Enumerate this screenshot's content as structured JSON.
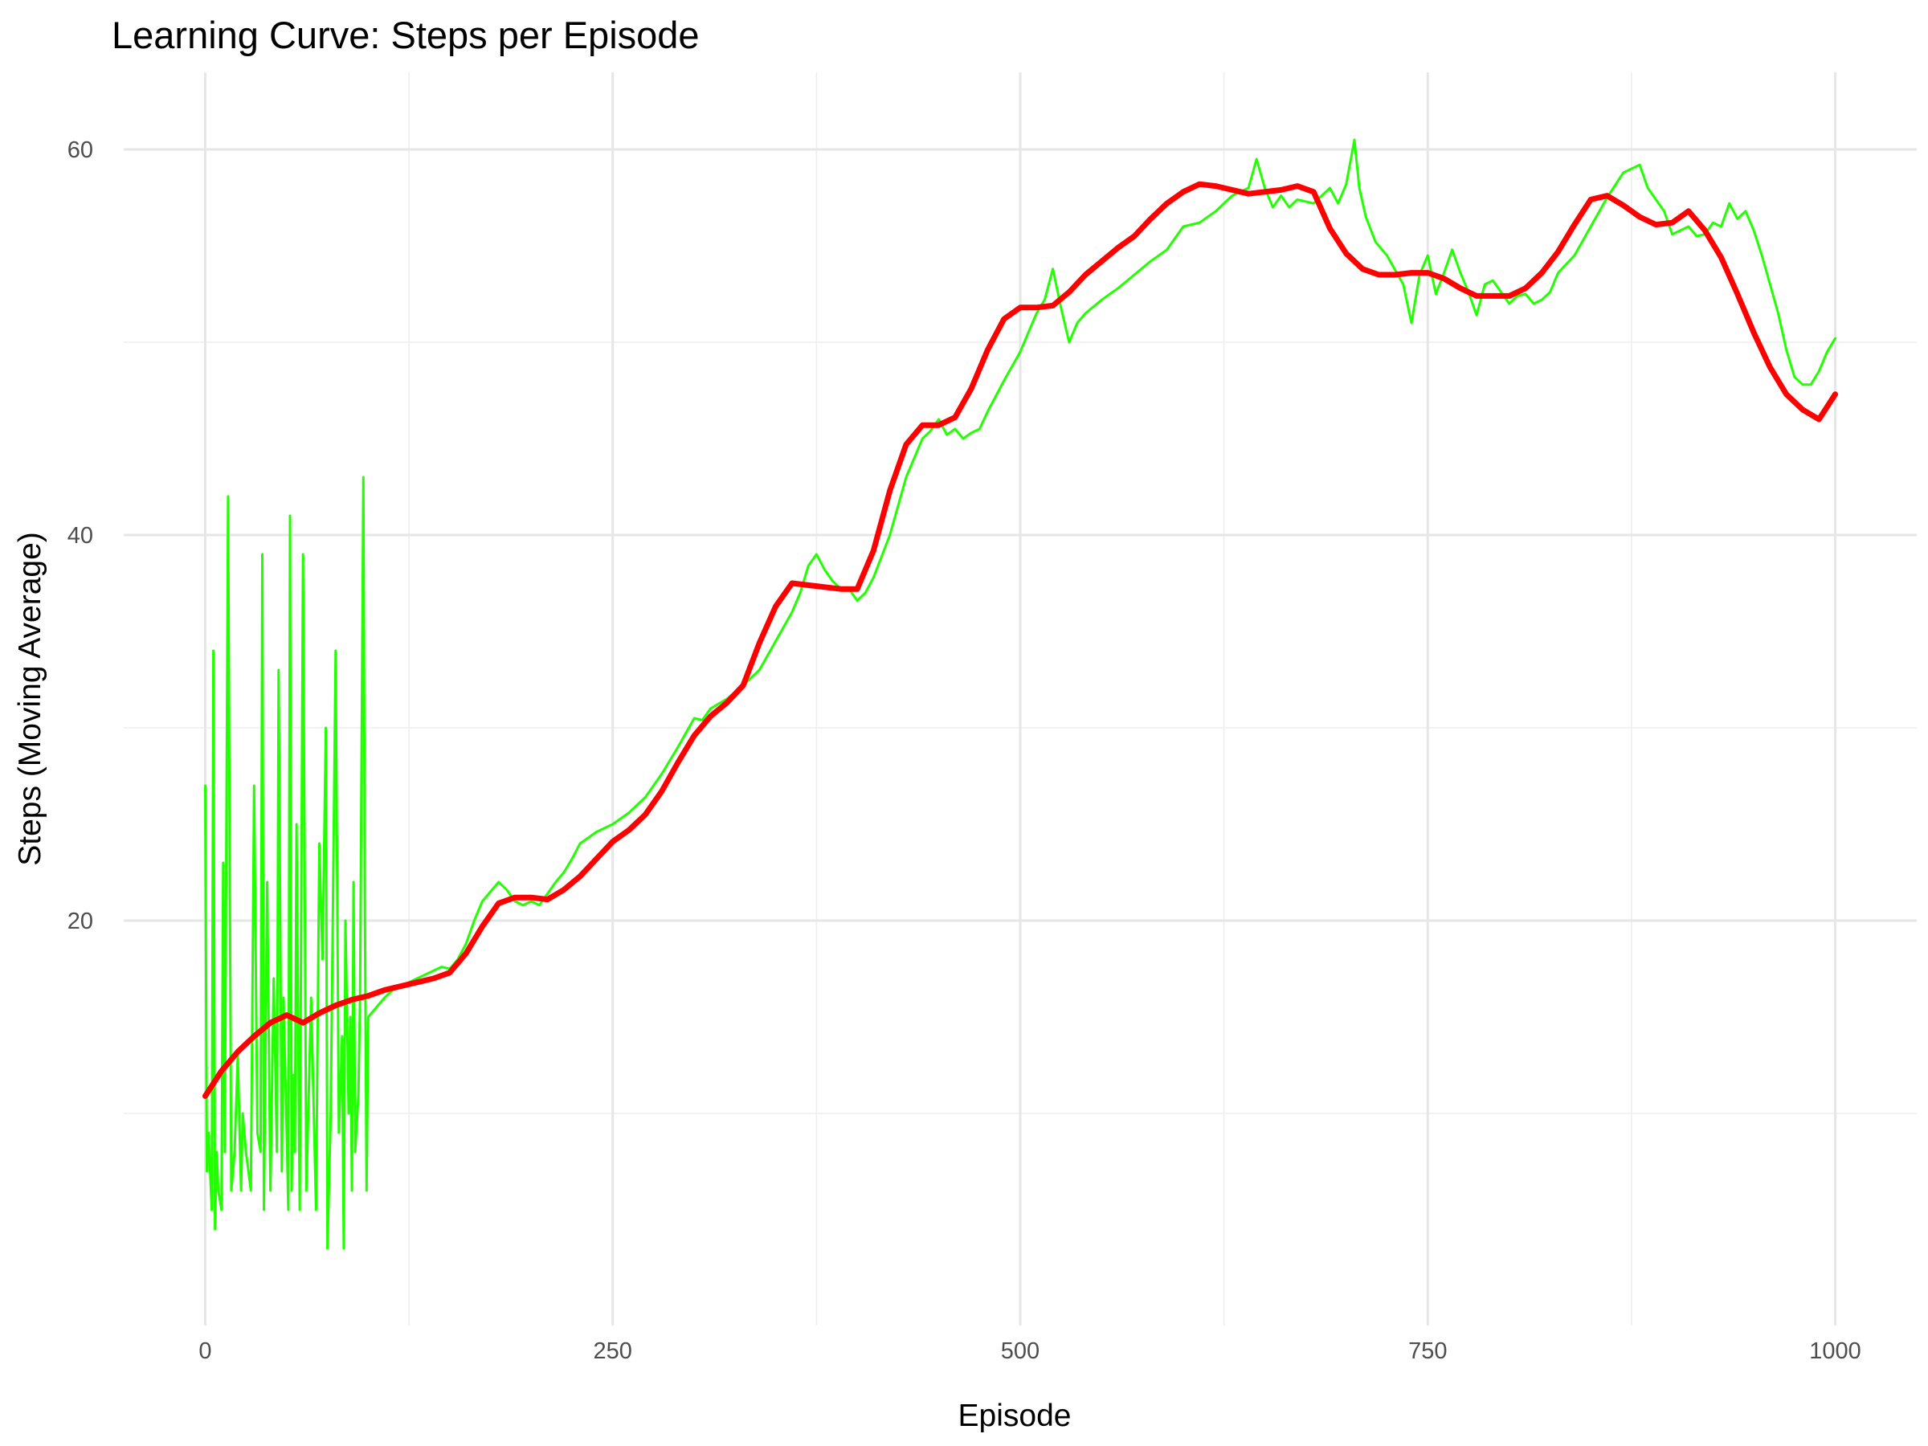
{
  "chart_data": {
    "type": "line",
    "title": "Learning Curve: Steps per Episode",
    "xlabel": "Episode",
    "ylabel": "Steps (Moving Average)",
    "xlim": [
      -50,
      1050
    ],
    "ylim": [
      -1,
      64
    ],
    "x_ticks": [
      0,
      250,
      500,
      750,
      1000
    ],
    "x_tick_labels": [
      "0",
      "250",
      "500",
      "750",
      "1000"
    ],
    "y_ticks": [
      20,
      40,
      60
    ],
    "y_tick_labels": [
      "20",
      "40",
      "60"
    ],
    "grid": true,
    "legend": "none",
    "colors": {
      "raw": "#22ff00",
      "smoothed": "#ff0000",
      "grid": "#e6e6e6"
    },
    "series": [
      {
        "key": "raw",
        "x": [
          0,
          1,
          2,
          4,
          5,
          6,
          7,
          8,
          10,
          11,
          12,
          14,
          16,
          18,
          20,
          22,
          23,
          25,
          28,
          30,
          32,
          34,
          35,
          36,
          38,
          40,
          42,
          44,
          45,
          47,
          48,
          50,
          51,
          52,
          53,
          54,
          55,
          56,
          58,
          60,
          62,
          65,
          68,
          70,
          72,
          74,
          75,
          77,
          80,
          82,
          84,
          85,
          86,
          88,
          89,
          90,
          91,
          92,
          94,
          95,
          97,
          98,
          99,
          100,
          105,
          110,
          115,
          120,
          125,
          130,
          135,
          140,
          145,
          150,
          155,
          160,
          165,
          170,
          175,
          180,
          185,
          190,
          195,
          200,
          205,
          210,
          215,
          220,
          225,
          230,
          240,
          250,
          260,
          270,
          280,
          290,
          300,
          305,
          310,
          320,
          330,
          340,
          350,
          360,
          365,
          370,
          375,
          380,
          385,
          390,
          395,
          400,
          405,
          410,
          420,
          430,
          440,
          445,
          450,
          455,
          460,
          465,
          470,
          475,
          480,
          490,
          500,
          505,
          510,
          515,
          520,
          525,
          530,
          535,
          540,
          550,
          560,
          570,
          580,
          590,
          600,
          610,
          620,
          630,
          640,
          645,
          650,
          655,
          660,
          665,
          670,
          680,
          690,
          695,
          700,
          705,
          708,
          712,
          718,
          725,
          735,
          740,
          745,
          750,
          755,
          760,
          765,
          770,
          775,
          780,
          785,
          790,
          795,
          800,
          805,
          810,
          815,
          820,
          825,
          830,
          840,
          850,
          860,
          870,
          880,
          885,
          890,
          895,
          900,
          905,
          910,
          915,
          920,
          925,
          930,
          935,
          940,
          945,
          950,
          955,
          960,
          965,
          970,
          975,
          980,
          985,
          990,
          995,
          1000
        ],
        "values": [
          27,
          7,
          9,
          5,
          34,
          4,
          8,
          6,
          5,
          23,
          8,
          42,
          6,
          8,
          13,
          6,
          10,
          8,
          6,
          27,
          9,
          8,
          39,
          5,
          22,
          6,
          17,
          8,
          33,
          7,
          16,
          9,
          5,
          41,
          6,
          12,
          8,
          25,
          5,
          39,
          6,
          16,
          5,
          24,
          18,
          30,
          3,
          10,
          34,
          9,
          14,
          3,
          20,
          10,
          15,
          6,
          22,
          8,
          11,
          16,
          43,
          20,
          6,
          15,
          15.5,
          16,
          16.4,
          16.6,
          16.8,
          17,
          17.2,
          17.4,
          17.6,
          17.5,
          18,
          18.8,
          20,
          21,
          21.5,
          22,
          21.6,
          21,
          20.8,
          21,
          20.8,
          21.4,
          22,
          22.5,
          23.2,
          24,
          24.6,
          25,
          25.6,
          26.4,
          27.6,
          29,
          30.5,
          30.4,
          31,
          31.5,
          32.2,
          33,
          34.5,
          36,
          37,
          38.4,
          39,
          38.2,
          37.6,
          37.2,
          37.2,
          36.6,
          37,
          37.8,
          40,
          43,
          45,
          45.4,
          46,
          45.2,
          45.5,
          45,
          45.3,
          45.5,
          46.4,
          48,
          49.5,
          50.5,
          51.5,
          52.2,
          53.8,
          51.8,
          50,
          51,
          51.5,
          52.2,
          52.8,
          53.5,
          54.2,
          54.8,
          56,
          56.2,
          56.8,
          57.6,
          58,
          59.5,
          58,
          57,
          57.6,
          57,
          57.4,
          57.2,
          58,
          57.2,
          58.2,
          60.5,
          58,
          56.5,
          55.2,
          54.5,
          53,
          51,
          53.5,
          54.5,
          52.5,
          53.6,
          54.8,
          53.6,
          52.6,
          51.4,
          53,
          53.2,
          52.6,
          52,
          52.4,
          52.5,
          52,
          52.2,
          52.6,
          53.6,
          54.5,
          56,
          57.5,
          58.8,
          59.2,
          58,
          57.4,
          56.8,
          55.6,
          55.8,
          56,
          55.5,
          55.6,
          56.2,
          56,
          57.2,
          56.4,
          56.8,
          55.8,
          54.5,
          53,
          51.5,
          49.6,
          48.2,
          47.8,
          47.8,
          48.5,
          49.5,
          50.2
        ]
      },
      {
        "key": "smoothed",
        "x": [
          0,
          10,
          20,
          30,
          40,
          50,
          60,
          70,
          80,
          90,
          100,
          110,
          120,
          130,
          140,
          150,
          160,
          170,
          180,
          190,
          200,
          210,
          220,
          230,
          240,
          250,
          260,
          270,
          280,
          290,
          300,
          310,
          320,
          330,
          340,
          350,
          360,
          370,
          380,
          390,
          400,
          410,
          420,
          430,
          440,
          450,
          460,
          470,
          480,
          490,
          500,
          510,
          520,
          530,
          540,
          550,
          560,
          570,
          580,
          590,
          600,
          610,
          620,
          630,
          640,
          650,
          660,
          670,
          680,
          690,
          700,
          710,
          720,
          730,
          740,
          750,
          760,
          770,
          780,
          790,
          800,
          810,
          820,
          830,
          840,
          850,
          860,
          870,
          880,
          890,
          900,
          910,
          920,
          930,
          940,
          950,
          960,
          970,
          980,
          990,
          1000
        ],
        "values": [
          10.9,
          12.2,
          13.2,
          14,
          14.7,
          15.1,
          14.7,
          15.2,
          15.6,
          15.9,
          16.1,
          16.4,
          16.6,
          16.8,
          17,
          17.3,
          18.3,
          19.7,
          20.9,
          21.2,
          21.2,
          21.1,
          21.6,
          22.3,
          23.2,
          24.1,
          24.7,
          25.5,
          26.7,
          28.2,
          29.6,
          30.6,
          31.3,
          32.2,
          34.4,
          36.3,
          37.5,
          37.4,
          37.3,
          37.2,
          37.2,
          39.2,
          42.3,
          44.7,
          45.7,
          45.7,
          46.1,
          47.6,
          49.6,
          51.2,
          51.8,
          51.8,
          51.9,
          52.6,
          53.5,
          54.2,
          54.9,
          55.5,
          56.4,
          57.2,
          57.8,
          58.2,
          58.1,
          57.9,
          57.7,
          57.8,
          57.9,
          58.1,
          57.8,
          55.9,
          54.6,
          53.8,
          53.5,
          53.5,
          53.6,
          53.6,
          53.3,
          52.8,
          52.4,
          52.4,
          52.4,
          52.8,
          53.6,
          54.7,
          56.1,
          57.4,
          57.6,
          57.1,
          56.5,
          56.1,
          56.2,
          56.8,
          55.8,
          54.4,
          52.5,
          50.5,
          48.7,
          47.3,
          46.5,
          46,
          47.3
        ]
      }
    ]
  }
}
